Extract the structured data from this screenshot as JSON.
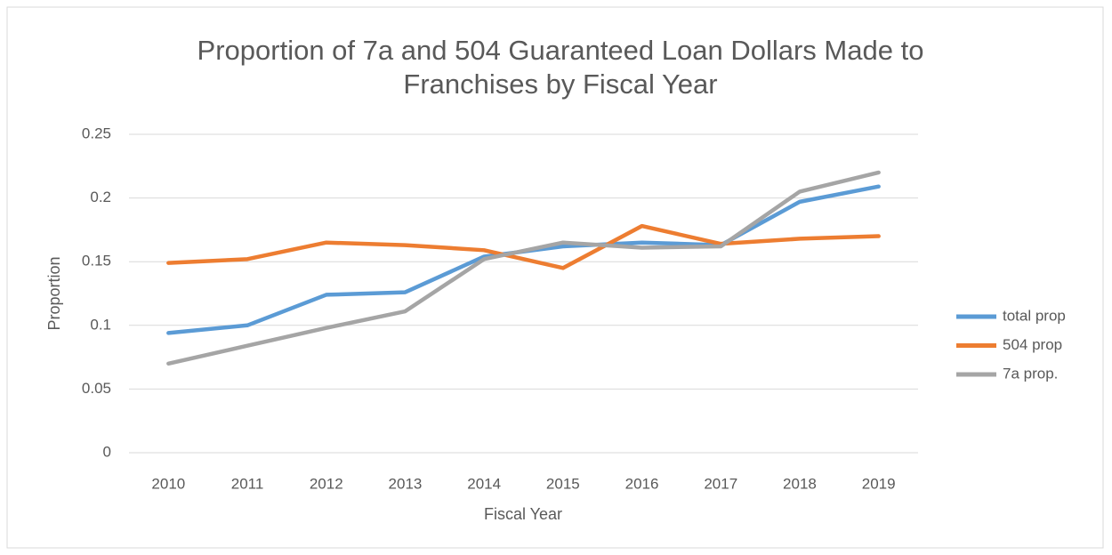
{
  "chart_data": {
    "type": "line",
    "title": "Proportion of 7a and 504 Guaranteed Loan Dollars Made to Franchises by Fiscal Year",
    "x_label": "Fiscal Year",
    "y_label": "Proportion",
    "categories": [
      "2010",
      "2011",
      "2012",
      "2013",
      "2014",
      "2015",
      "2016",
      "2017",
      "2018",
      "2019"
    ],
    "series": [
      {
        "name": "total prop",
        "color": "#5b9bd5",
        "values": [
          0.094,
          0.1,
          0.124,
          0.126,
          0.154,
          0.162,
          0.165,
          0.163,
          0.197,
          0.209
        ]
      },
      {
        "name": "504 prop",
        "color": "#ed7d31",
        "values": [
          0.149,
          0.152,
          0.165,
          0.163,
          0.159,
          0.145,
          0.178,
          0.164,
          0.168,
          0.17
        ]
      },
      {
        "name": "7a prop.",
        "color": "#a5a5a5",
        "values": [
          0.07,
          0.084,
          0.098,
          0.111,
          0.152,
          0.165,
          0.161,
          0.162,
          0.205,
          0.22
        ]
      }
    ],
    "ylim": [
      0,
      0.25
    ],
    "yticks": [
      0,
      0.05,
      0.1,
      0.15,
      0.2,
      0.25
    ],
    "grid": true,
    "legend": "right"
  }
}
